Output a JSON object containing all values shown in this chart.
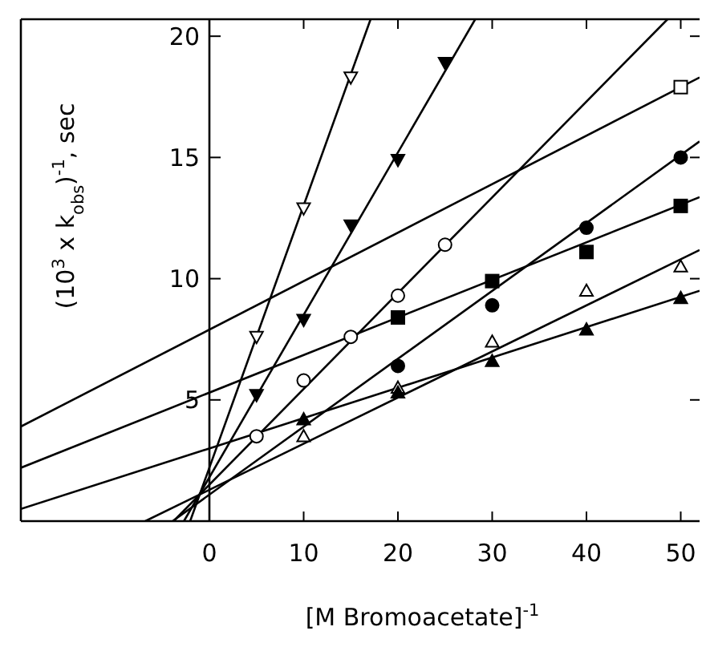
{
  "chart_data": {
    "type": "scatter",
    "xlabel": "[M Bromoacetate]$^{-1}$",
    "ylabel": "(10$^{3}$ x k$_{obs}$)$^{-1}$, sec",
    "xlim": [
      -20,
      52
    ],
    "ylim": [
      0,
      20.7
    ],
    "xticks": [
      0,
      10,
      20,
      30,
      40,
      50
    ],
    "yticks": [
      5,
      10,
      15,
      20
    ],
    "grid": false,
    "series": [
      {
        "marker": "triangle-down",
        "color": "#ffffff",
        "x": [
          5,
          10,
          15
        ],
        "values": [
          7.6,
          12.9,
          18.3
        ]
      },
      {
        "marker": "triangle-down",
        "color": "#000000",
        "x": [
          5,
          10,
          15,
          20,
          25
        ],
        "values": [
          5.2,
          8.3,
          12.2,
          14.9,
          18.9
        ]
      },
      {
        "marker": "circle",
        "color": "#ffffff",
        "x": [
          5,
          10,
          15,
          20,
          25
        ],
        "values": [
          3.5,
          5.8,
          7.6,
          9.3,
          11.4
        ]
      },
      {
        "marker": "square",
        "color": "#ffffff",
        "x": [
          50
        ],
        "values": [
          17.9
        ]
      },
      {
        "marker": "circle",
        "color": "#000000",
        "x": [
          20,
          30,
          40,
          50
        ],
        "values": [
          6.4,
          8.9,
          12.1,
          15.0
        ]
      },
      {
        "marker": "square",
        "color": "#000000",
        "x": [
          20,
          30,
          40,
          50
        ],
        "values": [
          8.4,
          9.9,
          11.1,
          13.0
        ]
      },
      {
        "marker": "triangle",
        "color": "#ffffff",
        "x": [
          10,
          20,
          30,
          40,
          50
        ],
        "values": [
          3.5,
          5.5,
          7.4,
          9.5,
          10.5
        ]
      },
      {
        "marker": "triangle",
        "color": "#000000",
        "x": [
          10,
          20,
          30,
          40,
          50
        ],
        "values": [
          4.2,
          5.3,
          6.6,
          7.9,
          9.2
        ]
      },
      {
        "type": "line",
        "color": "#000000",
        "x": [
          -2.04,
          17.1
        ],
        "values": [
          0,
          20.7
        ]
      },
      {
        "type": "line",
        "color": "#000000",
        "x": [
          -2.7,
          28.2
        ],
        "values": [
          0,
          20.7
        ]
      },
      {
        "type": "line",
        "color": "#000000",
        "x": [
          -3.8,
          48.6
        ],
        "values": [
          0,
          20.7
        ]
      },
      {
        "type": "line",
        "color": "#000000",
        "x": [
          -20,
          52
        ],
        "values": [
          3.9,
          18.3
        ]
      },
      {
        "type": "line",
        "color": "#000000",
        "x": [
          -3.9,
          52
        ],
        "values": [
          0,
          15.66
        ]
      },
      {
        "type": "line",
        "color": "#000000",
        "x": [
          -20,
          52
        ],
        "values": [
          2.2,
          13.36
        ]
      },
      {
        "type": "line",
        "color": "#000000",
        "x": [
          -6.8,
          52
        ],
        "values": [
          0,
          11.18
        ]
      },
      {
        "type": "line",
        "color": "#000000",
        "x": [
          -20,
          52
        ],
        "values": [
          0.5,
          9.5
        ]
      }
    ]
  }
}
